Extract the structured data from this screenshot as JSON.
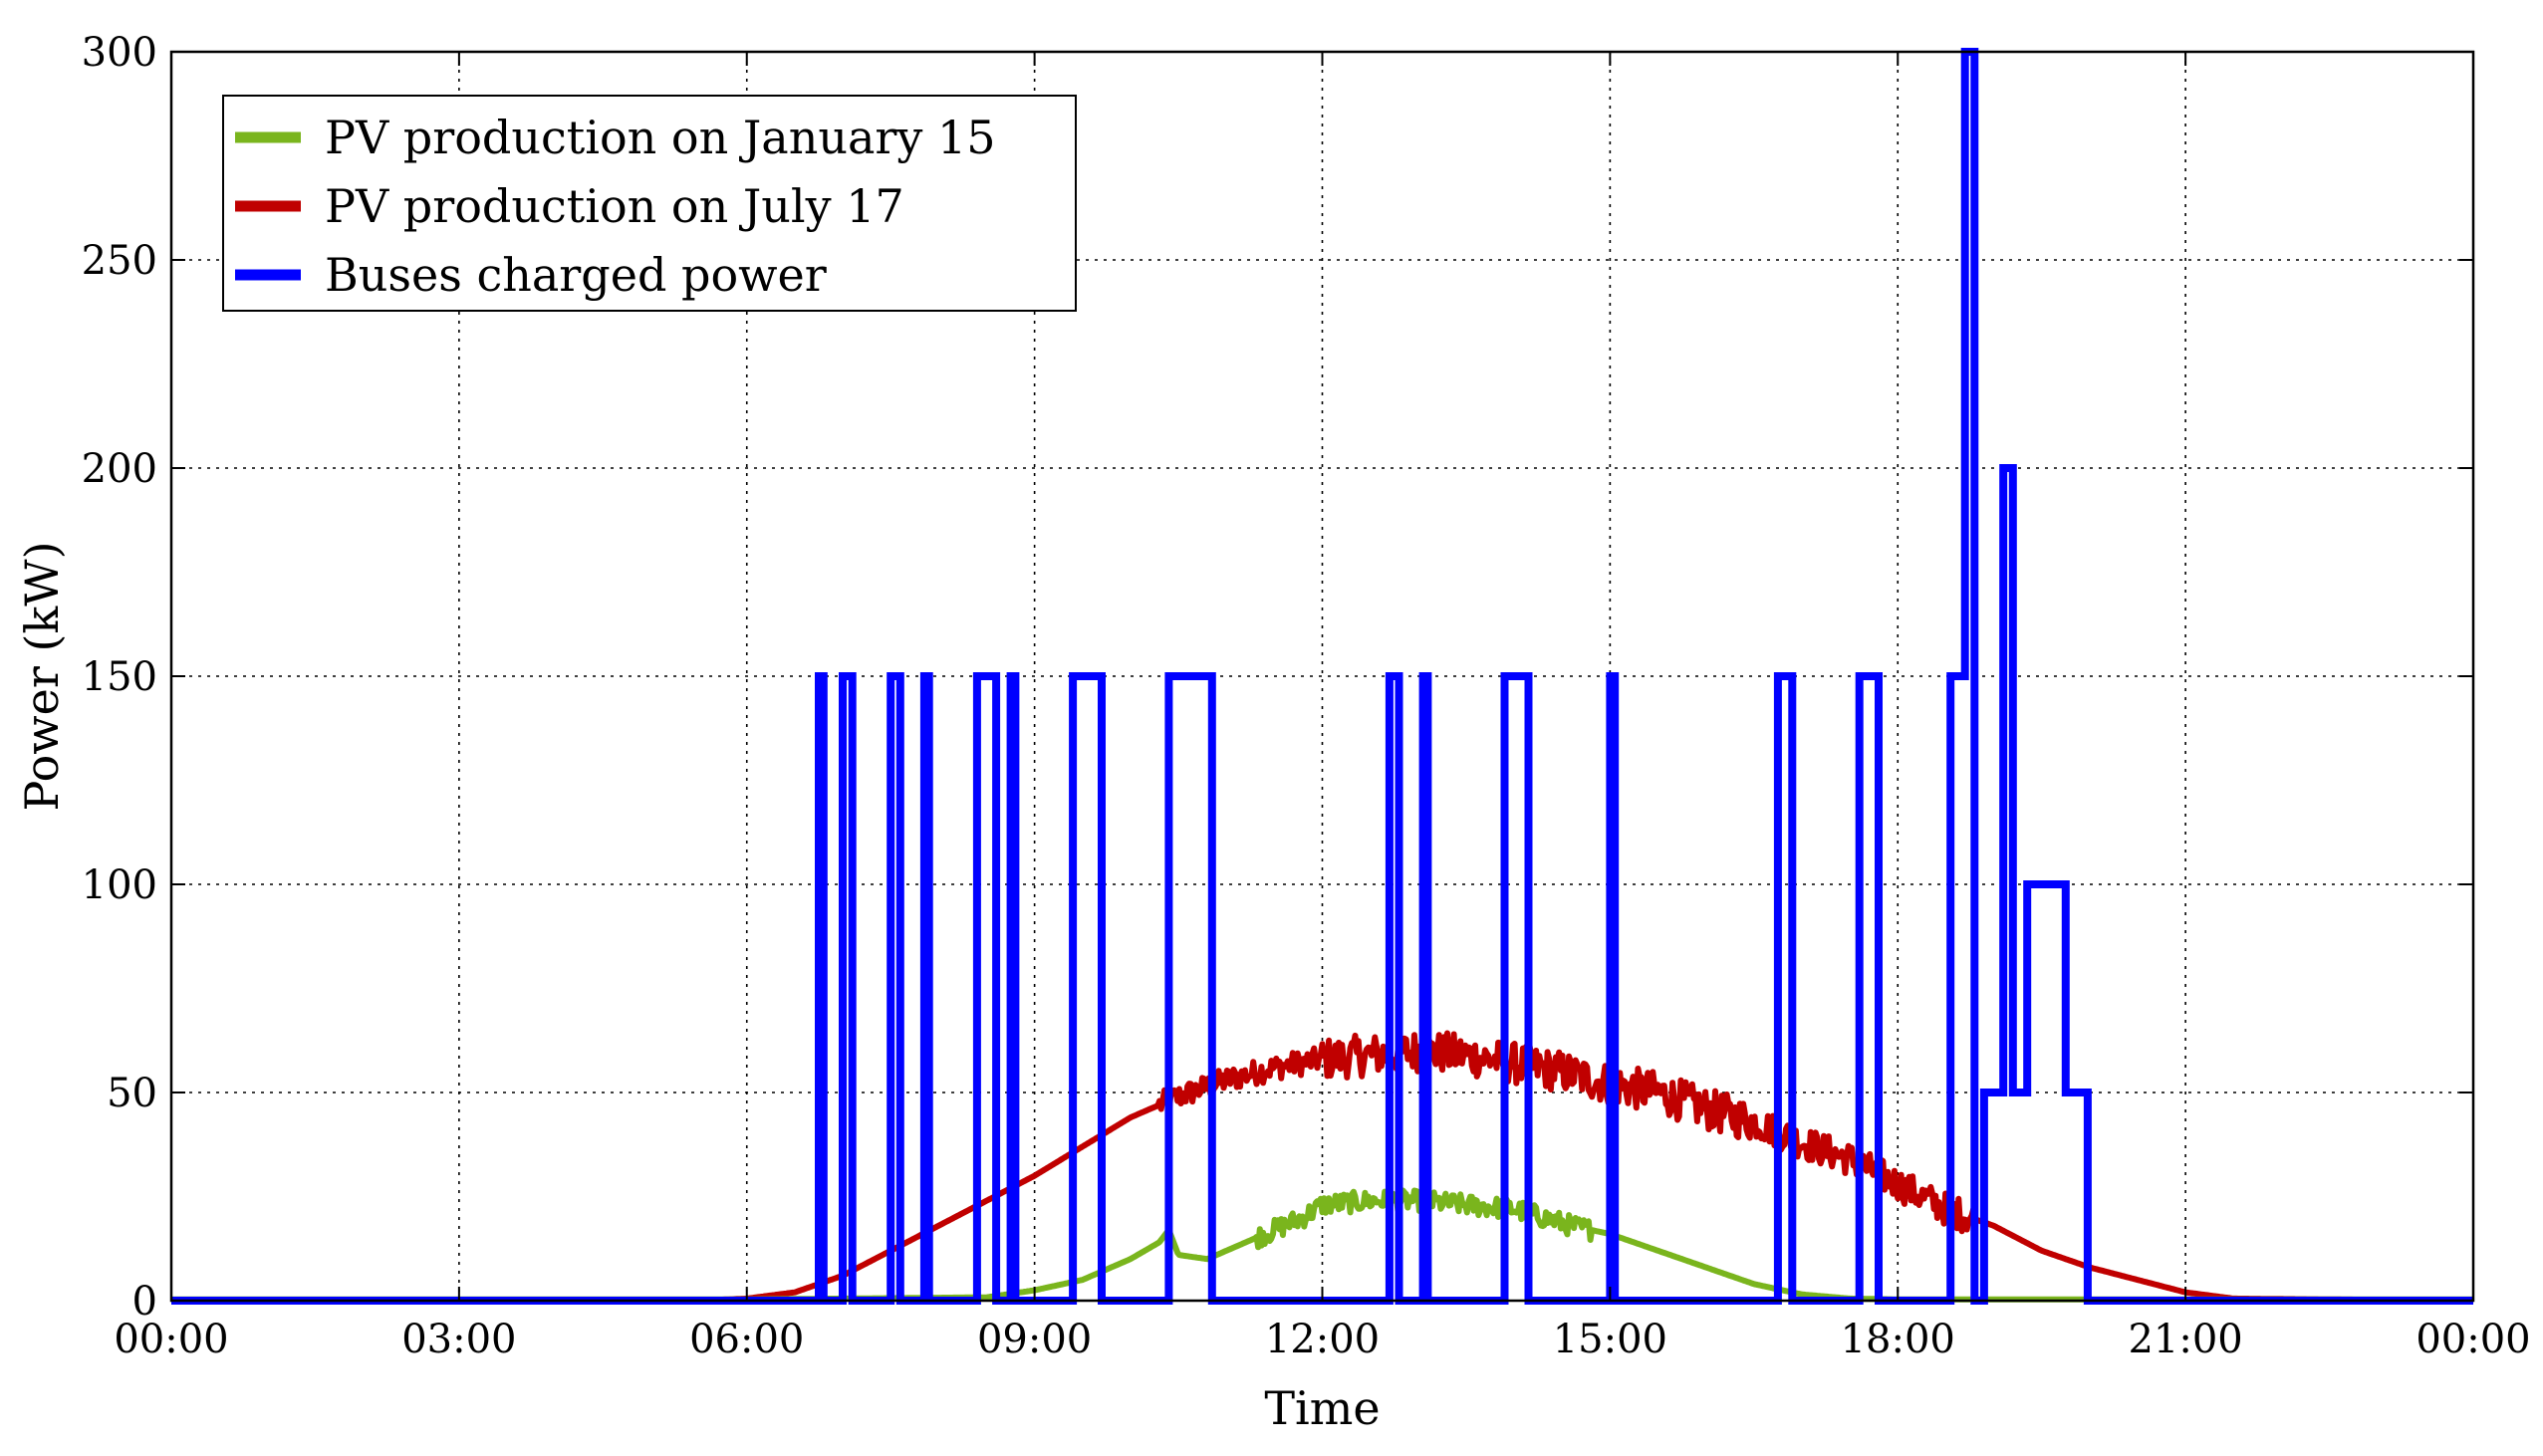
{
  "chart_data": {
    "type": "line",
    "title": "",
    "xlabel": "Time",
    "ylabel": "Power (kW)",
    "xlim": [
      0,
      24
    ],
    "ylim": [
      0,
      300
    ],
    "x_ticks": [
      0,
      3,
      6,
      9,
      12,
      15,
      18,
      21,
      24
    ],
    "x_tick_labels": [
      "00:00",
      "03:00",
      "06:00",
      "09:00",
      "12:00",
      "15:00",
      "18:00",
      "21:00",
      "00:00"
    ],
    "y_ticks": [
      0,
      50,
      100,
      150,
      200,
      250,
      300
    ],
    "y_tick_labels": [
      "0",
      "50",
      "100",
      "150",
      "200",
      "250",
      "300"
    ],
    "grid": true,
    "legend_position": "top-left",
    "series": [
      {
        "name": "PV production on January 15",
        "color": "#7ab51d",
        "x": [
          0,
          6.0,
          8.5,
          9.0,
          9.5,
          10.0,
          10.3,
          10.4,
          10.5,
          10.8,
          11.2,
          11.5,
          11.8,
          12.0,
          12.5,
          13.0,
          13.5,
          14.0,
          14.3,
          14.6,
          15.0,
          15.5,
          16.0,
          16.5,
          17.0,
          17.5,
          18.0,
          21.0,
          24.0
        ],
        "y": [
          0.3,
          0.3,
          0.8,
          2.5,
          5,
          10,
          14,
          17,
          11,
          10,
          14,
          17,
          20,
          23,
          24,
          24,
          23,
          22,
          20,
          18,
          16,
          12,
          8,
          4,
          1.5,
          0.5,
          0.3,
          0.3,
          0.3
        ]
      },
      {
        "name": "PV production on July 17",
        "color": "#c00000",
        "x": [
          0,
          5.5,
          6.0,
          6.5,
          7.0,
          7.5,
          8.0,
          8.5,
          9.0,
          9.5,
          10.0,
          10.5,
          11.0,
          11.5,
          12.0,
          12.5,
          13.0,
          13.5,
          14.0,
          14.5,
          15.0,
          15.5,
          16.0,
          16.5,
          17.0,
          17.5,
          18.0,
          18.5,
          19.0,
          19.5,
          20.0,
          20.5,
          21.0,
          21.5,
          24.0
        ],
        "y": [
          0,
          0,
          0.5,
          2,
          6,
          12,
          18,
          24,
          30,
          37,
          44,
          49,
          53,
          56,
          58,
          59,
          60,
          59,
          57,
          55,
          52,
          50,
          46,
          43,
          38,
          34,
          28,
          22,
          18,
          12,
          8,
          5,
          2,
          0.5,
          0
        ]
      },
      {
        "name": "Buses charged power",
        "color": "#0000ff",
        "x": [
          0,
          6.75,
          6.75,
          6.8,
          6.8,
          7.0,
          7.0,
          7.1,
          7.1,
          7.5,
          7.5,
          7.6,
          7.6,
          7.85,
          7.85,
          7.9,
          7.9,
          8.4,
          8.4,
          8.6,
          8.6,
          8.75,
          8.75,
          8.8,
          8.8,
          9.4,
          9.4,
          9.7,
          9.7,
          10.4,
          10.4,
          10.85,
          10.85,
          12.7,
          12.7,
          12.8,
          12.8,
          13.05,
          13.05,
          13.1,
          13.1,
          13.9,
          13.9,
          14.15,
          14.15,
          15.0,
          15.0,
          15.05,
          15.05,
          16.75,
          16.75,
          16.9,
          16.9,
          17.6,
          17.6,
          17.8,
          17.8,
          18.55,
          18.55,
          18.7,
          18.7,
          18.8,
          18.8,
          18.9,
          18.9,
          19.1,
          19.1,
          19.2,
          19.2,
          19.35,
          19.35,
          19.75,
          19.75,
          19.98,
          19.98,
          24.0
        ],
        "y": [
          0,
          0,
          150,
          150,
          0,
          0,
          150,
          150,
          0,
          0,
          150,
          150,
          0,
          0,
          150,
          150,
          0,
          0,
          150,
          150,
          0,
          0,
          150,
          150,
          0,
          0,
          150,
          150,
          0,
          0,
          150,
          150,
          0,
          0,
          150,
          150,
          0,
          0,
          150,
          150,
          0,
          0,
          150,
          150,
          0,
          0,
          150,
          150,
          0,
          0,
          150,
          150,
          0,
          0,
          150,
          150,
          0,
          0,
          150,
          150,
          300,
          300,
          0,
          0,
          50,
          50,
          200,
          200,
          50,
          50,
          100,
          100,
          50,
          50,
          0,
          0
        ]
      }
    ]
  }
}
